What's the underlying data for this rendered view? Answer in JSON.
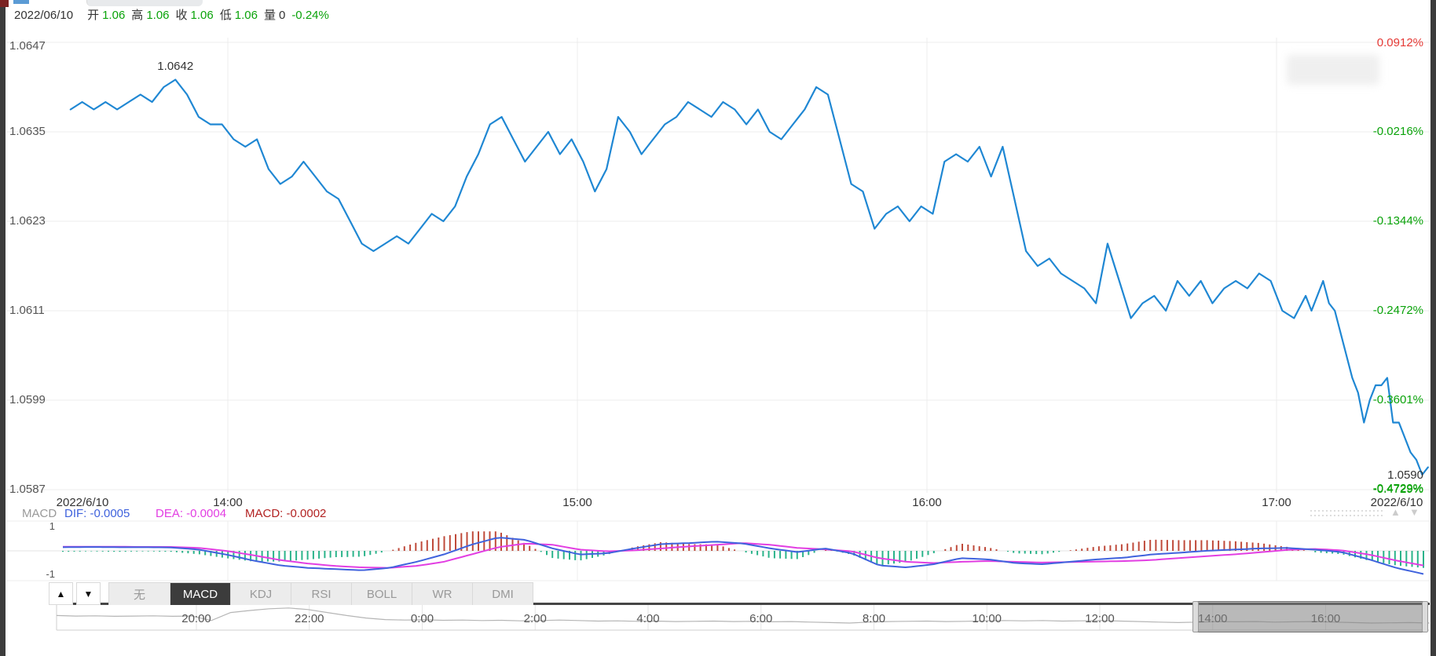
{
  "palette": {
    "up_green": "#0aa30a",
    "down_red": "#e53935",
    "price_line_blue": "#1f87d3",
    "dif_blue": "#3f62dd",
    "dea_magenta": "#e23ee2",
    "macd_text_red": "#b22222",
    "hist_red": "#bf4a3a",
    "hist_green": "#2bb38a",
    "navigator_line_gray": "#b5b5b5"
  },
  "top_bar": {
    "date": "2022/06/10",
    "fields": [
      {
        "label": "开",
        "value": "1.06",
        "green": true
      },
      {
        "label": "高",
        "value": "1.06",
        "green": true
      },
      {
        "label": "收",
        "value": "1.06",
        "green": true
      },
      {
        "label": "低",
        "value": "1.06",
        "green": true
      },
      {
        "label": "量",
        "value": "0",
        "green": false
      }
    ],
    "change": "-0.24%"
  },
  "macd_info": {
    "panel_label": "MACD",
    "dif": "DIF: -0.0005",
    "dea": "DEA: -0.0004",
    "macd": "MACD: -0.0002"
  },
  "pager": {
    "up_arrow": "▲",
    "down_arrow": "▼"
  },
  "indicator_tabs": {
    "scroll_up": "▲",
    "scroll_down": "▼",
    "tabs": [
      {
        "key": "none",
        "label": "无",
        "active": false
      },
      {
        "key": "macd",
        "label": "MACD",
        "active": true
      },
      {
        "key": "kdj",
        "label": "KDJ",
        "active": false
      },
      {
        "key": "rsi",
        "label": "RSI",
        "active": false
      },
      {
        "key": "boll",
        "label": "BOLL",
        "active": false
      },
      {
        "key": "wr",
        "label": "WR",
        "active": false
      },
      {
        "key": "dmi",
        "label": "DMI",
        "active": false
      }
    ]
  },
  "chart_data": [
    {
      "id": "price",
      "type": "line",
      "title": "",
      "ylabel": "",
      "grid": true,
      "y_ticks": [
        1.0647,
        1.0635,
        1.0623,
        1.0611,
        1.0599,
        1.0587
      ],
      "y_tick_labels": [
        "1.0647",
        "1.0635",
        "1.0623",
        "1.0611",
        "1.0599",
        "1.0587"
      ],
      "right_tick_labels": [
        "0.0912%",
        "-0.0216%",
        "-0.1344%",
        "-0.2472%",
        "-0.3601%",
        "-0.4729%"
      ],
      "x_tick_labels": [
        "2022/6/10",
        "14:00",
        "15:00",
        "16:00",
        "17:00",
        "2022/6/10"
      ],
      "annotation": {
        "text": "1.0642",
        "time": "13:51",
        "price": 1.0642
      },
      "last_price_label": "1.0590",
      "last_change_label": "-0.4729%",
      "series": [
        {
          "name": "price",
          "points": [
            [
              "13:33",
              1.0638
            ],
            [
              "13:35",
              1.0639
            ],
            [
              "13:37",
              1.0638
            ],
            [
              "13:39",
              1.0639
            ],
            [
              "13:41",
              1.0638
            ],
            [
              "13:43",
              1.0639
            ],
            [
              "13:45",
              1.064
            ],
            [
              "13:47",
              1.0639
            ],
            [
              "13:49",
              1.0641
            ],
            [
              "13:51",
              1.0642
            ],
            [
              "13:53",
              1.064
            ],
            [
              "13:55",
              1.0637
            ],
            [
              "13:57",
              1.0636
            ],
            [
              "13:59",
              1.0636
            ],
            [
              "14:01",
              1.0634
            ],
            [
              "14:03",
              1.0633
            ],
            [
              "14:05",
              1.0634
            ],
            [
              "14:07",
              1.063
            ],
            [
              "14:09",
              1.0628
            ],
            [
              "14:11",
              1.0629
            ],
            [
              "14:13",
              1.0631
            ],
            [
              "14:15",
              1.0629
            ],
            [
              "14:17",
              1.0627
            ],
            [
              "14:19",
              1.0626
            ],
            [
              "14:21",
              1.0623
            ],
            [
              "14:23",
              1.062
            ],
            [
              "14:25",
              1.0619
            ],
            [
              "14:27",
              1.062
            ],
            [
              "14:29",
              1.0621
            ],
            [
              "14:31",
              1.062
            ],
            [
              "14:33",
              1.0622
            ],
            [
              "14:35",
              1.0624
            ],
            [
              "14:37",
              1.0623
            ],
            [
              "14:39",
              1.0625
            ],
            [
              "14:41",
              1.0629
            ],
            [
              "14:43",
              1.0632
            ],
            [
              "14:45",
              1.0636
            ],
            [
              "14:47",
              1.0637
            ],
            [
              "14:49",
              1.0634
            ],
            [
              "14:51",
              1.0631
            ],
            [
              "14:53",
              1.0633
            ],
            [
              "14:55",
              1.0635
            ],
            [
              "14:57",
              1.0632
            ],
            [
              "14:59",
              1.0634
            ],
            [
              "15:01",
              1.0631
            ],
            [
              "15:03",
              1.0627
            ],
            [
              "15:05",
              1.063
            ],
            [
              "15:07",
              1.0637
            ],
            [
              "15:09",
              1.0635
            ],
            [
              "15:11",
              1.0632
            ],
            [
              "15:13",
              1.0634
            ],
            [
              "15:15",
              1.0636
            ],
            [
              "15:17",
              1.0637
            ],
            [
              "15:19",
              1.0639
            ],
            [
              "15:21",
              1.0638
            ],
            [
              "15:23",
              1.0637
            ],
            [
              "15:25",
              1.0639
            ],
            [
              "15:27",
              1.0638
            ],
            [
              "15:29",
              1.0636
            ],
            [
              "15:31",
              1.0638
            ],
            [
              "15:33",
              1.0635
            ],
            [
              "15:35",
              1.0634
            ],
            [
              "15:37",
              1.0636
            ],
            [
              "15:39",
              1.0638
            ],
            [
              "15:41",
              1.0641
            ],
            [
              "15:43",
              1.064
            ],
            [
              "15:45",
              1.0634
            ],
            [
              "15:47",
              1.0628
            ],
            [
              "15:49",
              1.0627
            ],
            [
              "15:51",
              1.0622
            ],
            [
              "15:53",
              1.0624
            ],
            [
              "15:55",
              1.0625
            ],
            [
              "15:57",
              1.0623
            ],
            [
              "15:59",
              1.0625
            ],
            [
              "16:01",
              1.0624
            ],
            [
              "16:03",
              1.0631
            ],
            [
              "16:05",
              1.0632
            ],
            [
              "16:07",
              1.0631
            ],
            [
              "16:09",
              1.0633
            ],
            [
              "16:11",
              1.0629
            ],
            [
              "16:13",
              1.0633
            ],
            [
              "16:15",
              1.0626
            ],
            [
              "16:17",
              1.0619
            ],
            [
              "16:19",
              1.0617
            ],
            [
              "16:21",
              1.0618
            ],
            [
              "16:23",
              1.0616
            ],
            [
              "16:25",
              1.0615
            ],
            [
              "16:27",
              1.0614
            ],
            [
              "16:29",
              1.0612
            ],
            [
              "16:31",
              1.062
            ],
            [
              "16:33",
              1.0615
            ],
            [
              "16:35",
              1.061
            ],
            [
              "16:37",
              1.0612
            ],
            [
              "16:39",
              1.0613
            ],
            [
              "16:41",
              1.0611
            ],
            [
              "16:43",
              1.0615
            ],
            [
              "16:45",
              1.0613
            ],
            [
              "16:47",
              1.0615
            ],
            [
              "16:49",
              1.0612
            ],
            [
              "16:51",
              1.0614
            ],
            [
              "16:53",
              1.0615
            ],
            [
              "16:55",
              1.0614
            ],
            [
              "16:57",
              1.0616
            ],
            [
              "16:59",
              1.0615
            ],
            [
              "17:01",
              1.0611
            ],
            [
              "17:03",
              1.061
            ],
            [
              "17:05",
              1.0613
            ],
            [
              "17:06",
              1.0611
            ],
            [
              "17:08",
              1.0615
            ],
            [
              "17:09",
              1.0612
            ],
            [
              "17:10",
              1.0611
            ],
            [
              "17:11",
              1.0608
            ],
            [
              "17:12",
              1.0605
            ],
            [
              "17:13",
              1.0602
            ],
            [
              "17:14",
              1.06
            ],
            [
              "17:15",
              1.0596
            ],
            [
              "17:16",
              1.0599
            ],
            [
              "17:17",
              1.0601
            ],
            [
              "17:18",
              1.0601
            ],
            [
              "17:19",
              1.0602
            ],
            [
              "17:20",
              1.0596
            ],
            [
              "17:21",
              1.0596
            ],
            [
              "17:22",
              1.0594
            ],
            [
              "17:23",
              1.0592
            ],
            [
              "17:24",
              1.0591
            ],
            [
              "17:25",
              1.0589
            ],
            [
              "17:26",
              1.059
            ]
          ]
        }
      ]
    },
    {
      "id": "macd",
      "type": "line+bar",
      "name": "MACD",
      "legend": [
        "DIF",
        "DEA",
        "MACD"
      ],
      "dif_value": -0.0005,
      "dea_value": -0.0004,
      "macd_value": -0.0002,
      "ylim": [
        -1,
        1
      ],
      "axis_labels": {
        "top": "1",
        "bottom": "-1"
      },
      "hist_rule": "(dif-dea)*2",
      "dif": [
        0.15,
        0.16,
        0.15,
        0.15,
        0.14,
        0.05,
        -0.15,
        -0.4,
        -0.6,
        -0.7,
        -0.75,
        -0.8,
        -0.7,
        -0.45,
        -0.15,
        0.25,
        0.55,
        0.45,
        0.1,
        -0.15,
        -0.1,
        0.1,
        0.28,
        0.32,
        0.38,
        0.3,
        0.1,
        -0.05,
        0.1,
        -0.1,
        -0.6,
        -0.68,
        -0.55,
        -0.3,
        -0.35,
        -0.5,
        -0.55,
        -0.45,
        -0.35,
        -0.28,
        -0.15,
        -0.08,
        0.0,
        0.05,
        0.1,
        0.12,
        0.05,
        -0.05,
        -0.35,
        -0.7,
        -0.95
      ],
      "dea": [
        0.17,
        0.17,
        0.17,
        0.16,
        0.16,
        0.12,
        0.0,
        -0.18,
        -0.38,
        -0.52,
        -0.62,
        -0.68,
        -0.7,
        -0.62,
        -0.45,
        -0.15,
        0.15,
        0.3,
        0.25,
        0.05,
        -0.02,
        0.02,
        0.1,
        0.18,
        0.25,
        0.32,
        0.25,
        0.12,
        0.06,
        -0.02,
        -0.3,
        -0.45,
        -0.5,
        -0.45,
        -0.42,
        -0.45,
        -0.48,
        -0.46,
        -0.44,
        -0.42,
        -0.38,
        -0.3,
        -0.22,
        -0.15,
        -0.06,
        0.04,
        0.08,
        0.02,
        -0.15,
        -0.4,
        -0.6
      ]
    },
    {
      "id": "navigator",
      "type": "line",
      "x_tick_labels": [
        "20:00",
        "22:00",
        "0:00",
        "2:00",
        "4:00",
        "6:00",
        "8:00",
        "10:00",
        "12:00",
        "14:00",
        "16:00"
      ],
      "values": [
        0.42,
        0.44,
        0.43,
        0.45,
        0.44,
        0.43,
        0.45,
        0.44,
        0.62,
        0.3,
        0.22,
        0.15,
        0.12,
        0.18,
        0.3,
        0.42,
        0.52,
        0.58,
        0.6,
        0.59,
        0.61,
        0.6,
        0.62,
        0.61,
        0.63,
        0.62,
        0.6,
        0.62,
        0.64,
        0.63,
        0.65,
        0.64,
        0.66,
        0.65,
        0.64,
        0.66,
        0.65,
        0.67,
        0.66,
        0.68,
        0.7,
        0.72,
        0.68,
        0.66,
        0.65,
        0.64,
        0.66,
        0.65,
        0.63,
        0.62,
        0.63,
        0.62,
        0.64,
        0.63,
        0.62,
        0.64,
        0.66,
        0.68,
        0.7,
        0.68,
        0.66,
        0.67,
        0.66,
        0.68,
        0.67,
        0.66,
        0.68,
        0.7,
        0.72,
        0.71,
        0.7,
        0.72
      ],
      "selection": {
        "start_frac": 0.829,
        "end_frac": 0.997
      }
    }
  ]
}
